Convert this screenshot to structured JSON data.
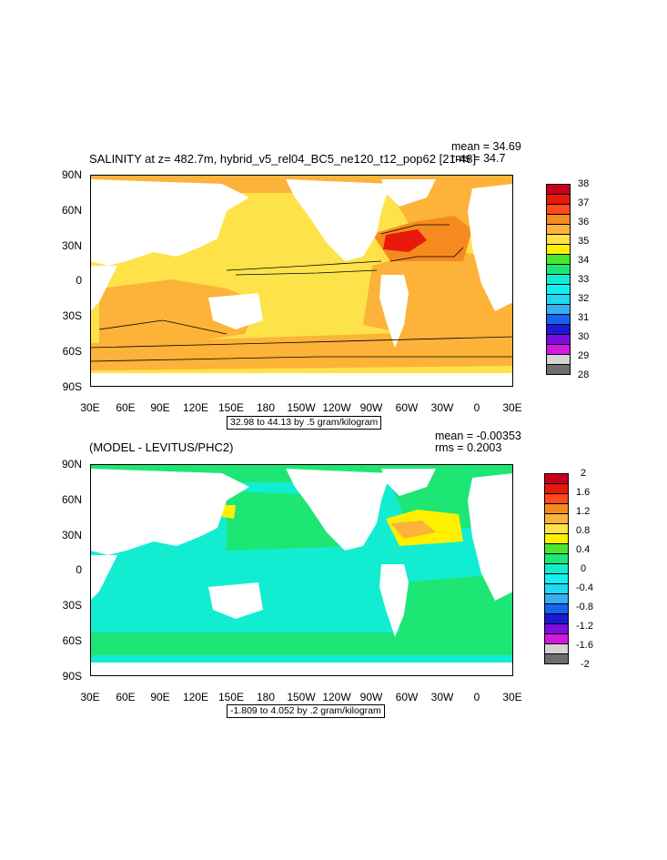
{
  "top_panel": {
    "title": "SALINITY at z= 482.7m, hybrid_v5_rel04_BC5_ne120_t12_pop62 [21-48]",
    "mean": "mean = 34.69",
    "rms": "rms = 34.7",
    "range_note": "32.98 to 44.13 by .5 gram/kilogram",
    "legend_labels": [
      "38",
      "37",
      "36",
      "35",
      "34",
      "33",
      "32",
      "31",
      "30",
      "29",
      "28"
    ],
    "legend_colors": [
      "#c8001e",
      "#e8190a",
      "#ff4a1c",
      "#f58a1e",
      "#fdb239",
      "#fde24a",
      "#fff000",
      "#48e62e",
      "#1ee675",
      "#12edd2",
      "#12f0f0",
      "#20d8f2",
      "#36aef6",
      "#1862f0",
      "#1c18d8",
      "#7c0ce0",
      "#d418e0",
      "#d4d4d4",
      "#6e6e6e"
    ]
  },
  "bottom_panel": {
    "title": "(MODEL - LEVITUS/PHC2)",
    "mean": "mean = -0.00353",
    "rms": "rms = 0.2003",
    "range_note": "-1.809 to 4.052 by .2 gram/kilogram",
    "legend_labels": [
      "2",
      "1.6",
      "1.2",
      "0.8",
      "0.4",
      "0",
      "-0.4",
      "-0.8",
      "-1.2",
      "-1.6",
      "-2"
    ],
    "legend_colors": [
      "#c8001e",
      "#e8190a",
      "#ff4a1c",
      "#f58a1e",
      "#fdb239",
      "#fde24a",
      "#fff000",
      "#48e62e",
      "#1ee675",
      "#12edd2",
      "#12f0f0",
      "#20d8f2",
      "#36aef6",
      "#1862f0",
      "#1c18d8",
      "#7c0ce0",
      "#d418e0",
      "#d4d4d4",
      "#6e6e6e"
    ]
  },
  "axes": {
    "lat_labels": [
      "90N",
      "60N",
      "30N",
      "0",
      "30S",
      "60S",
      "90S"
    ],
    "lon_labels": [
      "30E",
      "60E",
      "90E",
      "120E",
      "150E",
      "180",
      "150W",
      "120W",
      "90W",
      "60W",
      "30W",
      "0",
      "30E"
    ]
  },
  "colors": {
    "land": "#ffffff",
    "top_base": "#fde24a",
    "top_warm": "#fdb239",
    "top_hot": "#f58a1e",
    "top_max": "#e8190a",
    "bottom_base": "#12edd2",
    "bottom_mid": "#1ee675",
    "bottom_pos": "#fff000"
  }
}
